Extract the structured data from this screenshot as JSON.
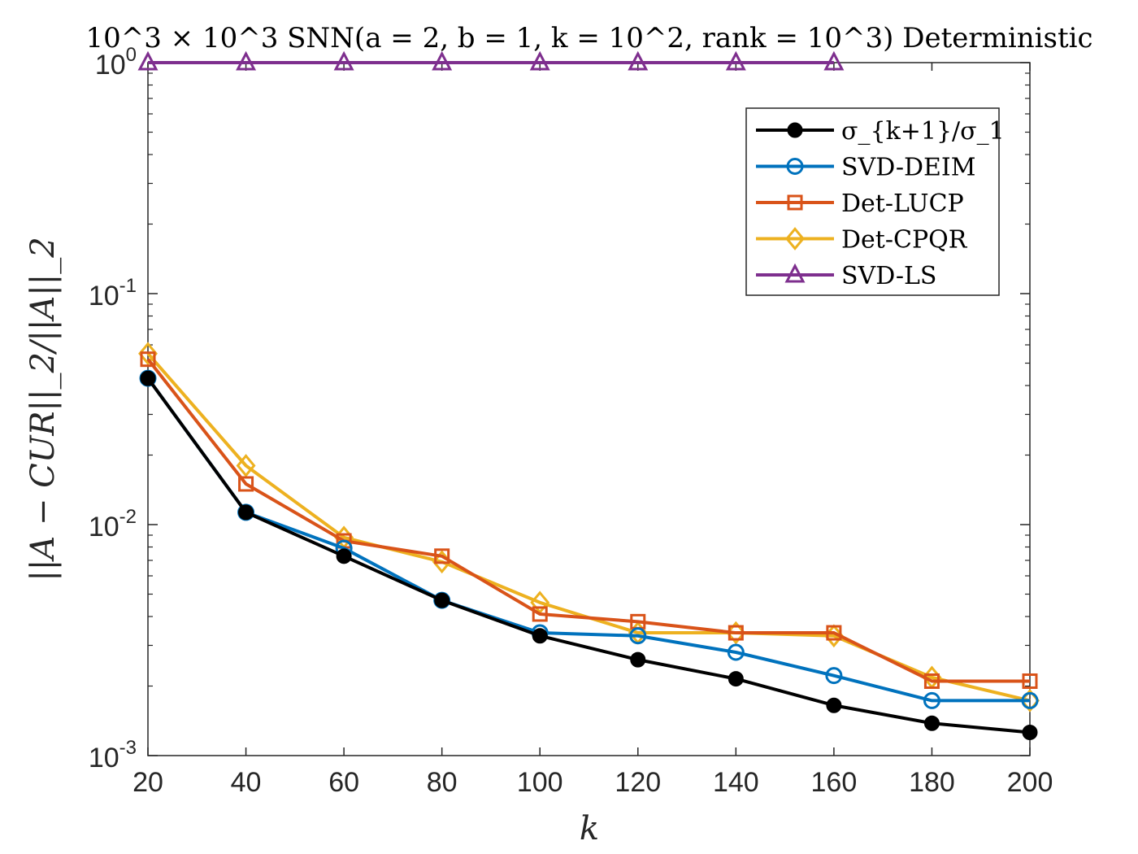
{
  "chart_data": {
    "type": "line",
    "title": "10^3 × 10^3 SNN(a = 2, b = 1, k = 10^2, rank = 10^3) Deterministic",
    "xlabel": "k",
    "ylabel": "||A − CUR||_2/||A||_2",
    "xlim": [
      20,
      200
    ],
    "ylim": [
      0.001,
      1
    ],
    "yscale": "log",
    "grid": false,
    "legend_position": "top-right",
    "x": [
      20,
      40,
      60,
      80,
      100,
      120,
      140,
      160,
      180,
      200
    ],
    "xticks": [
      "20",
      "40",
      "60",
      "80",
      "100",
      "120",
      "140",
      "160",
      "180",
      "200"
    ],
    "yticks": [
      {
        "value": 1,
        "base": "10",
        "exp": "0"
      },
      {
        "value": 0.1,
        "base": "10",
        "exp": "-1"
      },
      {
        "value": 0.01,
        "base": "10",
        "exp": "-2"
      },
      {
        "value": 0.001,
        "base": "10",
        "exp": "-3"
      }
    ],
    "series": [
      {
        "name": "σ_{k+1}/σ_1",
        "color": "#000000",
        "marker": "dot",
        "values": [
          0.043,
          0.0113,
          0.0073,
          0.0047,
          0.0033,
          0.0026,
          0.00215,
          0.00165,
          0.00138,
          0.00126
        ]
      },
      {
        "name": "SVD-DEIM",
        "color": "#0072BD",
        "marker": "circle",
        "values": [
          0.043,
          0.0113,
          0.0079,
          0.0047,
          0.0034,
          0.0033,
          0.0028,
          0.00222,
          0.00173,
          0.00173
        ]
      },
      {
        "name": "Det-LUCP",
        "color": "#D95319",
        "marker": "square",
        "values": [
          0.052,
          0.015,
          0.0085,
          0.0073,
          0.0041,
          0.0038,
          0.0034,
          0.0034,
          0.0021,
          0.0021
        ]
      },
      {
        "name": "Det-CPQR",
        "color": "#EDB120",
        "marker": "diamond",
        "values": [
          0.055,
          0.018,
          0.0088,
          0.0069,
          0.0046,
          0.0034,
          0.0034,
          0.0033,
          0.00218,
          0.00173
        ]
      },
      {
        "name": "SVD-LS",
        "color": "#7E2F8E",
        "marker": "triangle",
        "values": [
          1,
          1,
          1,
          1,
          1,
          1,
          1,
          1,
          null,
          null
        ]
      }
    ]
  }
}
